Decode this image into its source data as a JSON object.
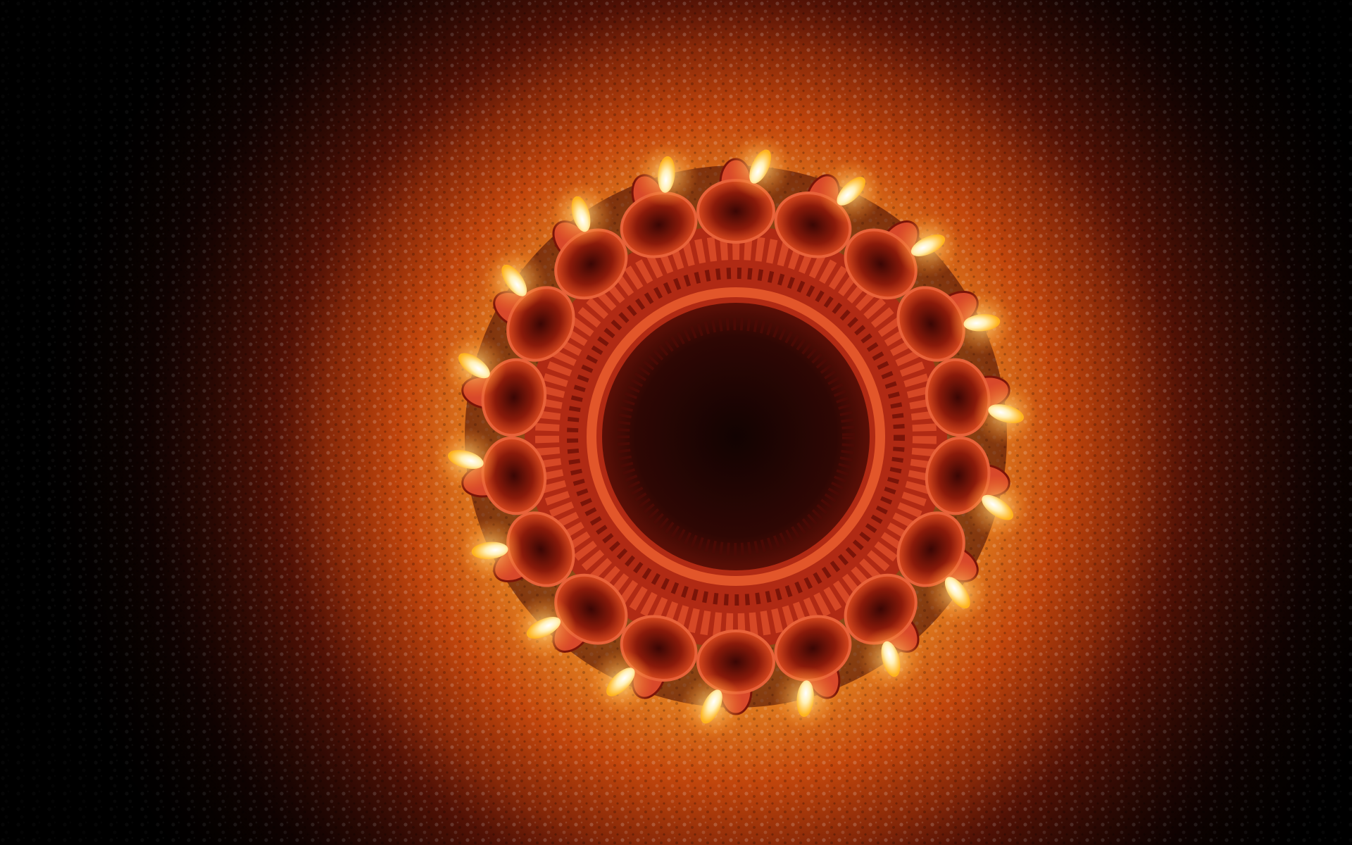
{
  "scene": {
    "subject": "diya-ring",
    "lamp_count": 18,
    "colors": {
      "background": "#000000",
      "glow_inner": "#ffb347",
      "glow_mid": "#e06a10",
      "glow_outer": "#5a0f04",
      "clay": "#c8321a",
      "clay_dark": "#6e1208",
      "flame_core": "#fffbe8",
      "flame_outer": "#ffd24a"
    }
  }
}
